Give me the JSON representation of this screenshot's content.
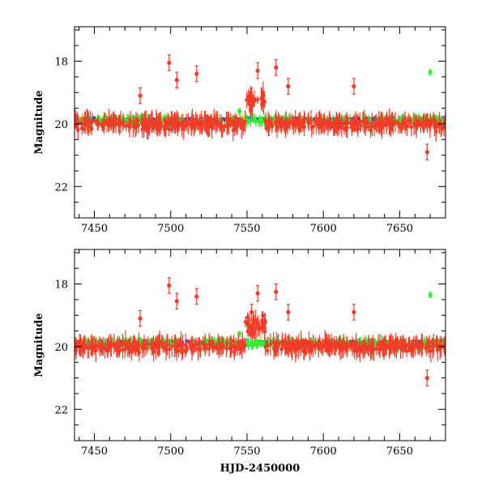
{
  "chart_data": [
    {
      "type": "scatter",
      "title": "",
      "xlabel": "",
      "ylabel": "Magnitude",
      "xlim": [
        7437,
        7680
      ],
      "ylim": [
        23.0,
        16.9
      ],
      "y_inverted": true,
      "xticks": [
        7450,
        7500,
        7550,
        7600,
        7650
      ],
      "xtick_labels": [
        "7450",
        "7500",
        "7550",
        "7600",
        "7650"
      ],
      "yticks": [
        18,
        20,
        22
      ],
      "ytick_labels": [
        "18",
        "20",
        "22"
      ],
      "series": [
        {
          "name": "blue",
          "color": "#1f3fe0",
          "baseline": 19.85,
          "x_range": [
            7437,
            7680
          ],
          "points": [
            [
              7450,
              19.85
            ],
            [
              7500,
              19.9
            ],
            [
              7550,
              19.85
            ],
            [
              7580,
              19.85
            ],
            [
              7620,
              19.9
            ],
            [
              7678,
              19.85
            ]
          ]
        },
        {
          "name": "green",
          "color": "#33ee33",
          "baseline": 19.9,
          "x_range": [
            7437,
            7680
          ],
          "points": [
            [
              7440,
              19.9
            ],
            [
              7480,
              19.8
            ],
            [
              7545,
              19.6
            ],
            [
              7600,
              19.9
            ],
            [
              7670,
              18.35
            ]
          ]
        },
        {
          "name": "red",
          "color": "#f03c28",
          "baseline": 20.0,
          "x_range": [
            7437,
            7680
          ],
          "points": [
            [
              7499,
              18.05
            ],
            [
              7504,
              18.6
            ],
            [
              7517,
              18.4
            ],
            [
              7553,
              19.1
            ],
            [
              7557,
              18.3
            ],
            [
              7569,
              18.2
            ],
            [
              7480,
              19.1
            ],
            [
              7577,
              18.8
            ],
            [
              7620,
              18.8
            ],
            [
              7668,
              20.9
            ]
          ]
        }
      ]
    },
    {
      "type": "scatter",
      "title": "",
      "xlabel": "HJD-2450000",
      "ylabel": "Magnitude",
      "xlim": [
        7437,
        7680
      ],
      "ylim": [
        23.0,
        16.9
      ],
      "y_inverted": true,
      "xticks": [
        7450,
        7500,
        7550,
        7600,
        7650
      ],
      "xtick_labels": [
        "7450",
        "7500",
        "7550",
        "7600",
        "7650"
      ],
      "yticks": [
        18,
        20,
        22
      ],
      "ytick_labels": [
        "18",
        "20",
        "22"
      ],
      "series": [
        {
          "name": "blue",
          "color": "#1f3fe0",
          "baseline": 19.85,
          "x_range": [
            7437,
            7680
          ],
          "points": [
            [
              7450,
              19.85
            ],
            [
              7500,
              19.9
            ],
            [
              7550,
              19.85
            ],
            [
              7580,
              19.85
            ],
            [
              7620,
              19.9
            ],
            [
              7678,
              19.85
            ]
          ]
        },
        {
          "name": "green",
          "color": "#33ee33",
          "baseline": 19.9,
          "x_range": [
            7437,
            7680
          ],
          "points": [
            [
              7440,
              19.9
            ],
            [
              7480,
              19.8
            ],
            [
              7545,
              19.6
            ],
            [
              7600,
              19.9
            ],
            [
              7670,
              18.35
            ]
          ]
        },
        {
          "name": "red",
          "color": "#f03c28",
          "baseline": 20.0,
          "x_range": [
            7437,
            7680
          ],
          "points": [
            [
              7499,
              18.05
            ],
            [
              7504,
              18.55
            ],
            [
              7517,
              18.4
            ],
            [
              7553,
              18.9
            ],
            [
              7557,
              18.3
            ],
            [
              7569,
              18.25
            ],
            [
              7480,
              19.1
            ],
            [
              7577,
              18.9
            ],
            [
              7620,
              18.9
            ],
            [
              7668,
              21.0
            ]
          ]
        }
      ]
    }
  ]
}
